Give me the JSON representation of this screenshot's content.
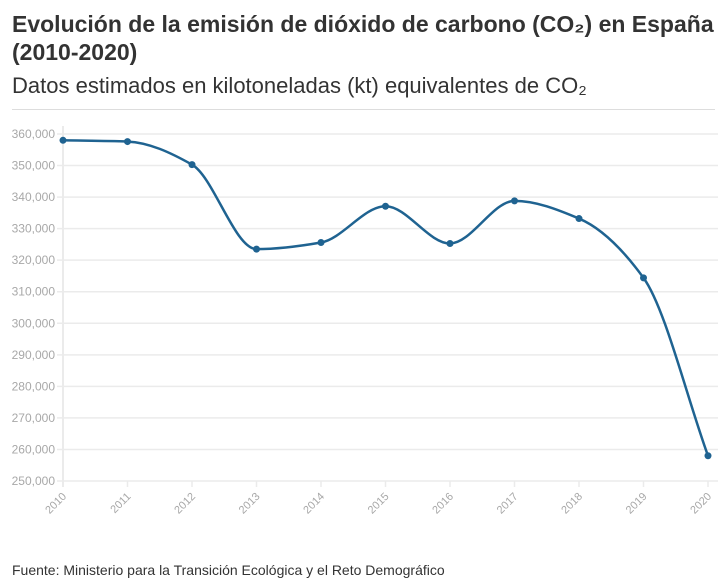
{
  "header": {
    "title": "Evolución de la emisión de dióxido de carbono (CO₂) en España (2010-2020)",
    "subtitle": "Datos estimados en kilotoneladas (kt) equivalentes de CO₂"
  },
  "footer": {
    "source": "Fuente: Ministerio para la Transición Ecológica y el Reto Demográfico"
  },
  "colors": {
    "line": "#1f6391",
    "grid": "#ebebeb",
    "tick_label": "#a8a8a8"
  },
  "chart_data": {
    "type": "line",
    "title": "Evolución de la emisión de dióxido de carbono (CO₂) en España (2010-2020)",
    "subtitle": "Datos estimados en kilotoneladas (kt) equivalentes de CO₂",
    "x": [
      "2010",
      "2011",
      "2012",
      "2013",
      "2014",
      "2015",
      "2016",
      "2017",
      "2018",
      "2019",
      "2020"
    ],
    "series": [
      {
        "values": [
          358000,
          357600,
          350300,
          323500,
          325600,
          337100,
          325300,
          338800,
          333200,
          314400,
          258000
        ]
      }
    ],
    "ylim": [
      250000,
      360000
    ],
    "yticks": [
      "250,000",
      "260,000",
      "270,000",
      "280,000",
      "290,000",
      "300,000",
      "310,000",
      "320,000",
      "330,000",
      "340,000",
      "350,000",
      "360,000"
    ],
    "ytick_values": [
      250000,
      260000,
      270000,
      280000,
      290000,
      300000,
      310000,
      320000,
      330000,
      340000,
      350000,
      360000
    ],
    "grid": true,
    "curve": "smooth"
  }
}
